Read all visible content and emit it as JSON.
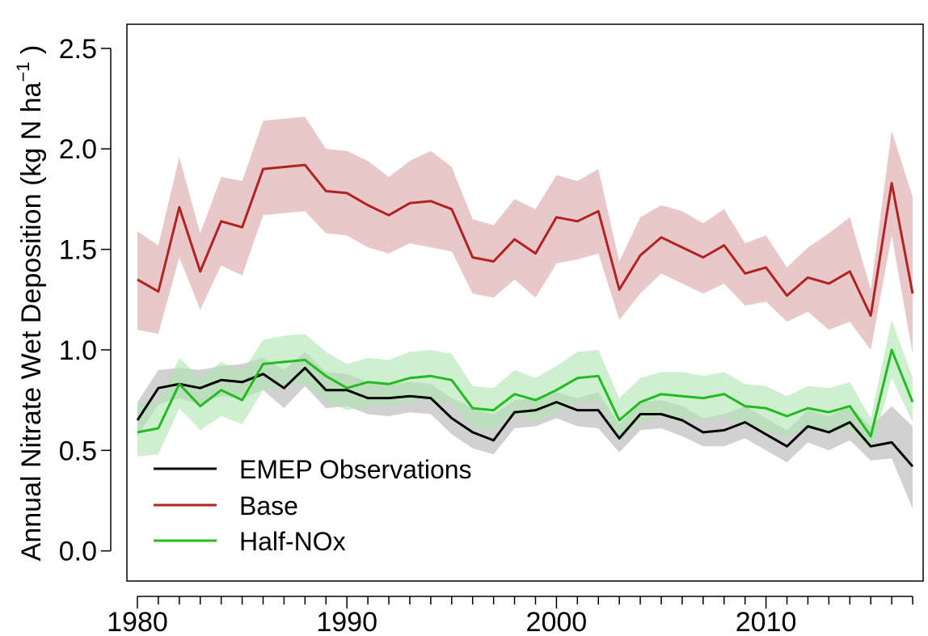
{
  "chart_data": {
    "type": "line",
    "title": "",
    "xlabel": "",
    "ylabel": "Annual Nitrate Wet Deposition (kg N ha",
    "ylabel_sup": "−1",
    "ylabel_close": " )",
    "xlim": [
      1979.5,
      2017.5
    ],
    "ylim": [
      -0.15,
      2.62
    ],
    "x_ticks": [
      1980,
      1990,
      2000,
      2010
    ],
    "x_tick_labels": [
      "1980",
      "1990",
      "2000",
      "2010"
    ],
    "y_ticks": [
      0.0,
      0.5,
      1.0,
      1.5,
      2.0,
      2.5
    ],
    "y_tick_labels": [
      "0.0",
      "0.5",
      "1.0",
      "1.5",
      "2.0",
      "2.5"
    ],
    "grid": false,
    "legend_position": "bottom-left",
    "x": [
      1980,
      1981,
      1982,
      1983,
      1984,
      1985,
      1986,
      1987,
      1988,
      1989,
      1990,
      1991,
      1992,
      1993,
      1994,
      1995,
      1996,
      1997,
      1998,
      1999,
      2000,
      2001,
      2002,
      2003,
      2004,
      2005,
      2006,
      2007,
      2008,
      2009,
      2010,
      2011,
      2012,
      2013,
      2014,
      2015,
      2016,
      2017
    ],
    "series": [
      {
        "name": "EMEP Observations",
        "color": "#000000",
        "band_color": "#b3b3b3",
        "values": [
          0.65,
          0.81,
          0.83,
          0.81,
          0.85,
          0.84,
          0.88,
          0.81,
          0.91,
          0.8,
          0.8,
          0.76,
          0.76,
          0.77,
          0.76,
          0.66,
          0.59,
          0.55,
          0.69,
          0.7,
          0.74,
          0.7,
          0.7,
          0.56,
          0.68,
          0.68,
          0.65,
          0.59,
          0.6,
          0.64,
          0.58,
          0.52,
          0.62,
          0.59,
          0.64,
          0.52,
          0.54,
          0.42
        ],
        "upper": [
          0.74,
          0.9,
          0.91,
          0.9,
          0.92,
          0.93,
          0.96,
          0.9,
          0.99,
          0.89,
          0.88,
          0.84,
          0.83,
          0.84,
          0.83,
          0.76,
          0.71,
          0.68,
          0.75,
          0.76,
          0.79,
          0.76,
          0.79,
          0.63,
          0.74,
          0.75,
          0.72,
          0.66,
          0.68,
          0.72,
          0.66,
          0.6,
          0.7,
          0.67,
          0.72,
          0.62,
          0.72,
          0.62
        ],
        "lower": [
          0.57,
          0.73,
          0.76,
          0.73,
          0.77,
          0.76,
          0.8,
          0.71,
          0.82,
          0.71,
          0.72,
          0.68,
          0.67,
          0.69,
          0.68,
          0.58,
          0.51,
          0.48,
          0.61,
          0.62,
          0.66,
          0.62,
          0.61,
          0.49,
          0.6,
          0.61,
          0.57,
          0.52,
          0.52,
          0.56,
          0.5,
          0.44,
          0.54,
          0.5,
          0.55,
          0.45,
          0.46,
          0.21
        ]
      },
      {
        "name": "Base",
        "color": "#b22222",
        "band_color": "#d9a3a3",
        "values": [
          1.35,
          1.29,
          1.71,
          1.39,
          1.64,
          1.61,
          1.9,
          1.91,
          1.92,
          1.79,
          1.78,
          1.72,
          1.67,
          1.73,
          1.74,
          1.7,
          1.46,
          1.44,
          1.55,
          1.48,
          1.66,
          1.64,
          1.69,
          1.3,
          1.47,
          1.56,
          1.51,
          1.46,
          1.52,
          1.38,
          1.41,
          1.27,
          1.36,
          1.33,
          1.39,
          1.17,
          1.83,
          1.28
        ],
        "upper": [
          1.59,
          1.52,
          1.96,
          1.58,
          1.86,
          1.84,
          2.14,
          2.15,
          2.16,
          2.0,
          1.99,
          1.94,
          1.86,
          1.94,
          1.99,
          1.91,
          1.65,
          1.62,
          1.75,
          1.7,
          1.87,
          1.84,
          1.9,
          1.44,
          1.66,
          1.72,
          1.69,
          1.63,
          1.7,
          1.53,
          1.57,
          1.41,
          1.51,
          1.58,
          1.66,
          1.3,
          2.09,
          1.76
        ],
        "lower": [
          1.1,
          1.08,
          1.46,
          1.2,
          1.42,
          1.37,
          1.67,
          1.68,
          1.69,
          1.58,
          1.57,
          1.51,
          1.48,
          1.53,
          1.51,
          1.49,
          1.28,
          1.26,
          1.35,
          1.26,
          1.43,
          1.45,
          1.48,
          1.15,
          1.28,
          1.38,
          1.33,
          1.28,
          1.33,
          1.22,
          1.24,
          1.14,
          1.19,
          1.1,
          1.14,
          1.0,
          1.57,
          0.98
        ]
      },
      {
        "name": "Half-NOx",
        "color": "#22bb22",
        "band_color": "#aee6ae",
        "values": [
          0.59,
          0.61,
          0.83,
          0.72,
          0.8,
          0.75,
          0.93,
          0.94,
          0.95,
          0.87,
          0.81,
          0.84,
          0.83,
          0.86,
          0.87,
          0.85,
          0.71,
          0.7,
          0.78,
          0.75,
          0.8,
          0.86,
          0.87,
          0.65,
          0.74,
          0.78,
          0.77,
          0.76,
          0.78,
          0.72,
          0.71,
          0.67,
          0.71,
          0.69,
          0.72,
          0.57,
          1.0,
          0.74
        ],
        "upper": [
          0.73,
          0.74,
          0.96,
          0.86,
          0.94,
          0.89,
          1.05,
          1.07,
          1.08,
          0.99,
          0.93,
          0.96,
          0.95,
          0.99,
          1.0,
          0.98,
          0.82,
          0.81,
          0.9,
          0.86,
          0.92,
          0.99,
          1.0,
          0.76,
          0.86,
          0.89,
          0.89,
          0.87,
          0.89,
          0.83,
          0.82,
          0.77,
          0.82,
          0.81,
          0.84,
          0.66,
          1.15,
          0.86
        ],
        "lower": [
          0.47,
          0.48,
          0.71,
          0.6,
          0.67,
          0.63,
          0.8,
          0.82,
          0.83,
          0.75,
          0.7,
          0.72,
          0.72,
          0.74,
          0.75,
          0.73,
          0.61,
          0.6,
          0.68,
          0.64,
          0.69,
          0.74,
          0.75,
          0.55,
          0.64,
          0.67,
          0.66,
          0.65,
          0.67,
          0.62,
          0.6,
          0.57,
          0.61,
          0.59,
          0.61,
          0.49,
          0.86,
          0.64
        ]
      }
    ]
  }
}
